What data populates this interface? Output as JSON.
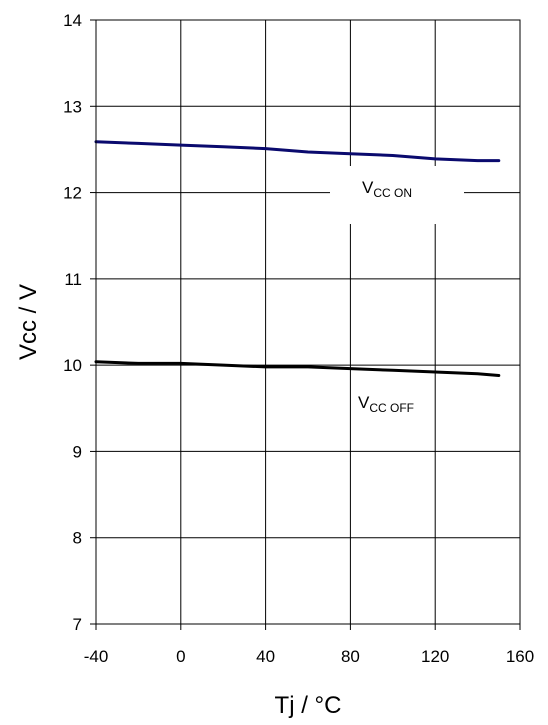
{
  "chart_data": {
    "type": "line",
    "xlabel": "Tj / °C",
    "ylabel": "Vcc / V",
    "xlim": [
      -40,
      160
    ],
    "ylim": [
      7,
      14
    ],
    "xticks": [
      "-40",
      "0",
      "40",
      "80",
      "120",
      "160"
    ],
    "yticks": [
      "7",
      "8",
      "9",
      "10",
      "11",
      "12",
      "13",
      "14"
    ],
    "grid": true,
    "series": [
      {
        "key": "on",
        "color": "#0a0a6e",
        "x": [
          -40,
          -20,
          0,
          20,
          40,
          60,
          80,
          100,
          120,
          140,
          150
        ],
        "y": [
          12.59,
          12.57,
          12.55,
          12.53,
          12.51,
          12.47,
          12.45,
          12.43,
          12.39,
          12.37,
          12.37
        ]
      },
      {
        "key": "off",
        "color": "#000000",
        "x": [
          -40,
          -20,
          0,
          20,
          40,
          60,
          80,
          100,
          120,
          140,
          150
        ],
        "y": [
          10.04,
          10.02,
          10.02,
          10.0,
          9.98,
          9.98,
          9.96,
          9.94,
          9.92,
          9.9,
          9.88
        ]
      }
    ],
    "annotations": {
      "on": {
        "main": "V",
        "sub": "CC ON"
      },
      "off": {
        "main": "V",
        "sub": "CC OFF"
      }
    }
  }
}
